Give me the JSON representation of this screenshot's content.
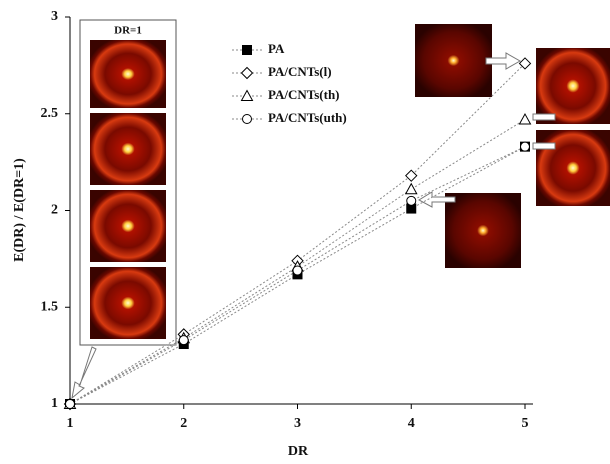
{
  "chart_data": {
    "type": "line",
    "xlabel": "DR",
    "ylabel": "E(DR) / E(DR=1)",
    "annotation": "DR=1",
    "x": [
      1,
      2,
      3,
      4,
      5
    ],
    "xlim": [
      1,
      5
    ],
    "xticks": [
      1,
      2,
      3,
      4,
      5
    ],
    "ylim": [
      1,
      3
    ],
    "yticks": [
      1,
      1.5,
      2,
      2.5,
      3
    ],
    "series": [
      {
        "name": "PA",
        "color": "#000000",
        "marker": "square",
        "values": [
          1,
          1.31,
          1.67,
          2.01,
          2.33
        ]
      },
      {
        "name": "PA/CNTs(l)",
        "color": "#000000",
        "marker": "diamond",
        "values": [
          1,
          1.36,
          1.74,
          2.18,
          2.76
        ]
      },
      {
        "name": "PA/CNTs(th)",
        "color": "#000000",
        "marker": "triangle",
        "values": [
          1,
          1.34,
          1.71,
          2.11,
          2.47
        ]
      },
      {
        "name": "PA/CNTs(uth)",
        "color": "#000000",
        "marker": "circle",
        "values": [
          1,
          1.33,
          1.69,
          2.05,
          2.33
        ]
      }
    ]
  }
}
